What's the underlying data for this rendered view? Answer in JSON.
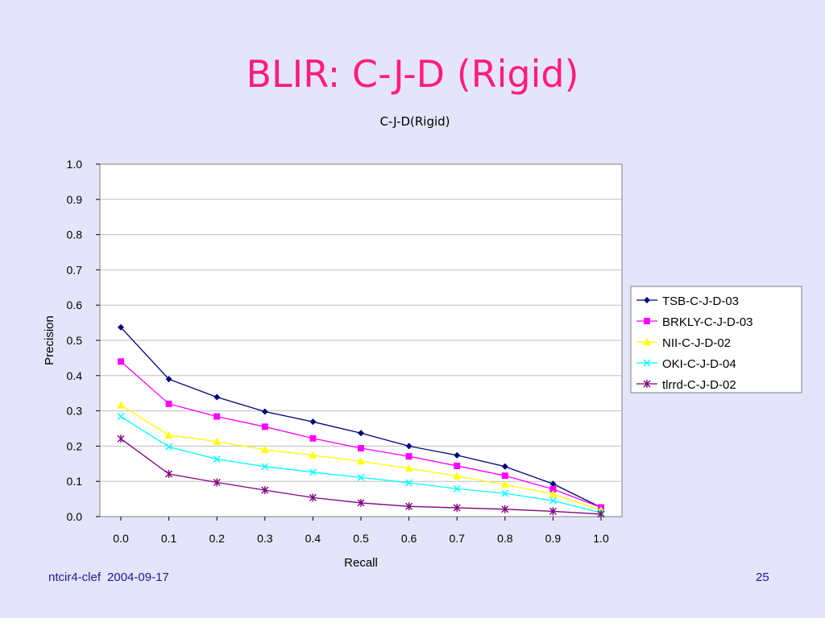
{
  "slide": {
    "title": "BLIR: C-J-D (Rigid)",
    "footer_source": "ntcir4-clef",
    "footer_date": "2004-09-17",
    "page_number": "25"
  },
  "colors": {
    "background": "#e4e4fa",
    "title": "#ff1e7a",
    "footer": "#1a1a9a"
  },
  "chart_data": {
    "type": "line",
    "title": "C-J-D(Rigid)",
    "xlabel": "Recall",
    "ylabel": "Precision",
    "xlim": [
      0.0,
      1.0
    ],
    "ylim": [
      0.0,
      1.0
    ],
    "x": [
      0.0,
      0.1,
      0.2,
      0.3,
      0.4,
      0.5,
      0.6,
      0.7,
      0.8,
      0.9,
      1.0
    ],
    "x_tick_labels": [
      "0.0",
      "0.1",
      "0.2",
      "0.3",
      "0.4",
      "0.5",
      "0.6",
      "0.7",
      "0.8",
      "0.9",
      "1.0"
    ],
    "y_ticks": [
      0.0,
      0.1,
      0.2,
      0.3,
      0.4,
      0.5,
      0.6,
      0.7,
      0.8,
      0.9,
      1.0
    ],
    "y_tick_labels": [
      "0.0",
      "0.1",
      "0.2",
      "0.3",
      "0.4",
      "0.5",
      "0.6",
      "0.7",
      "0.8",
      "0.9",
      "1.0"
    ],
    "grid": "horizontal",
    "legend_position": "right",
    "series": [
      {
        "name": "TSB-C-J-D-03",
        "color": "#00007a",
        "marker": "diamond",
        "values": [
          0.537,
          0.39,
          0.339,
          0.298,
          0.269,
          0.237,
          0.2,
          0.174,
          0.142,
          0.093,
          0.026
        ]
      },
      {
        "name": "BRKLY-C-J-D-03",
        "color": "#ff00ff",
        "marker": "square",
        "values": [
          0.44,
          0.32,
          0.284,
          0.255,
          0.222,
          0.194,
          0.171,
          0.144,
          0.116,
          0.078,
          0.026
        ]
      },
      {
        "name": "NII-C-J-D-02",
        "color": "#ffff00",
        "marker": "triangle",
        "values": [
          0.316,
          0.231,
          0.213,
          0.19,
          0.174,
          0.157,
          0.137,
          0.115,
          0.091,
          0.064,
          0.018
        ]
      },
      {
        "name": "OKI-C-J-D-04",
        "color": "#00ffff",
        "marker": "x",
        "values": [
          0.284,
          0.198,
          0.163,
          0.142,
          0.126,
          0.111,
          0.096,
          0.079,
          0.066,
          0.045,
          0.011
        ]
      },
      {
        "name": "tlrrd-C-J-D-02",
        "color": "#800080",
        "marker": "star",
        "values": [
          0.221,
          0.121,
          0.097,
          0.075,
          0.054,
          0.039,
          0.029,
          0.025,
          0.021,
          0.015,
          0.007
        ]
      }
    ]
  }
}
